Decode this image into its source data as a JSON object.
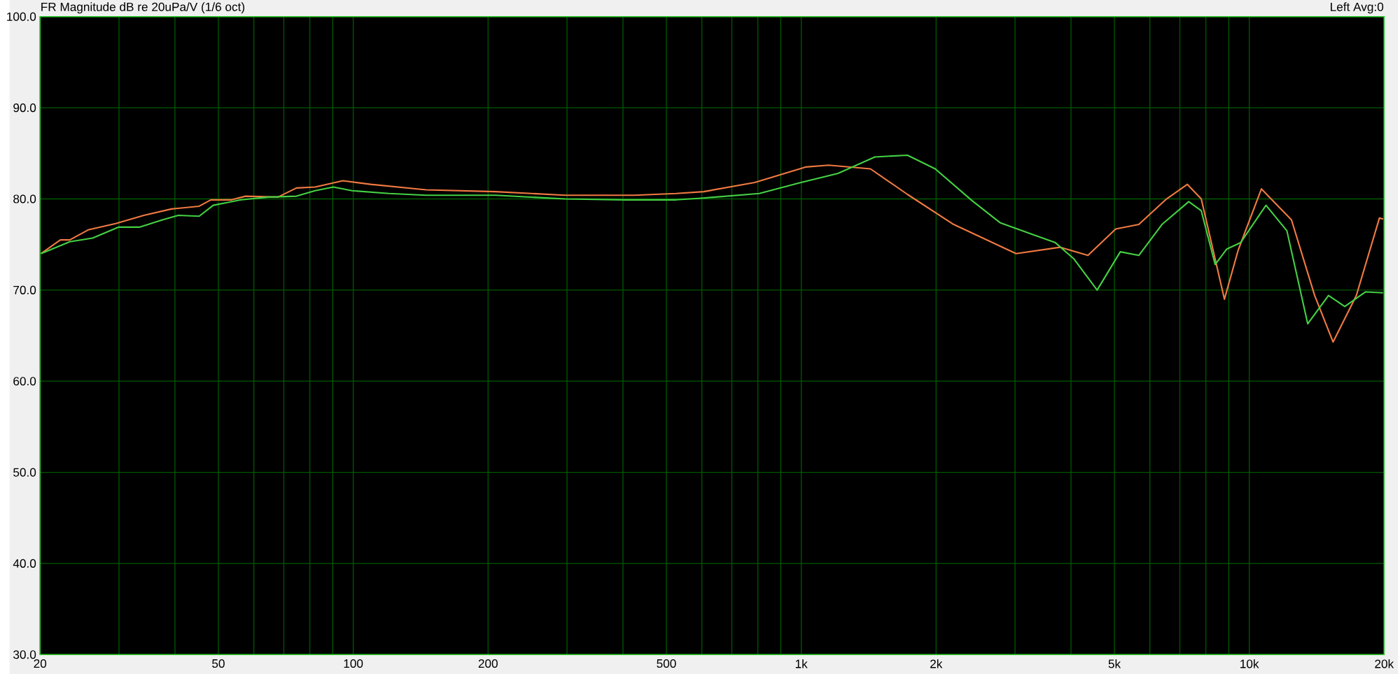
{
  "chart_data": {
    "type": "line",
    "title": "FR Magnitude dB re 20uPa/V (1/6 oct)",
    "annotations": [
      "Left Avg:0"
    ],
    "xlim": [
      20,
      20000
    ],
    "ylim": [
      30,
      100
    ],
    "log": "x",
    "grid": true,
    "marker": "none",
    "line_style": "solid",
    "xticks": [
      20,
      {
        "value": 30,
        "label": null
      },
      {
        "value": 40,
        "label": null
      },
      50,
      {
        "value": 60,
        "label": null
      },
      {
        "value": 70,
        "label": null
      },
      {
        "value": 80,
        "label": null
      },
      {
        "value": 90,
        "label": null
      },
      100,
      200,
      {
        "value": 300,
        "label": null
      },
      {
        "value": 400,
        "label": null
      },
      500,
      {
        "value": 600,
        "label": null
      },
      {
        "value": 700,
        "label": null
      },
      {
        "value": 800,
        "label": null
      },
      {
        "value": 900,
        "label": null
      },
      {
        "value": 1000,
        "label": "1k"
      },
      {
        "value": 2000,
        "label": "2k"
      },
      {
        "value": 3000,
        "label": null
      },
      {
        "value": 4000,
        "label": null
      },
      {
        "value": 5000,
        "label": "5k"
      },
      {
        "value": 6000,
        "label": null
      },
      {
        "value": 7000,
        "label": null
      },
      {
        "value": 8000,
        "label": null
      },
      {
        "value": 9000,
        "label": null
      },
      {
        "value": 10000,
        "label": "10k"
      },
      {
        "value": 20000,
        "label": "20k"
      }
    ],
    "yticks": [
      {
        "value": 30,
        "label": "30.0"
      },
      {
        "value": 40,
        "label": "40.0"
      },
      {
        "value": 50,
        "label": "50.0"
      },
      {
        "value": 60,
        "label": "60.0"
      },
      {
        "value": 70,
        "label": "70.0"
      },
      {
        "value": 80,
        "label": "80.0"
      },
      {
        "value": 90,
        "label": "90.0"
      },
      {
        "value": 100,
        "label": "100.0"
      }
    ],
    "series": [
      {
        "color": "#f07a42",
        "x": [
          20.1,
          22.2,
          23.3,
          25.6,
          29.5,
          34.1,
          39.3,
          45.3,
          48.1,
          53.5,
          57.5,
          67.9,
          74.7,
          82.2,
          94.8,
          109.3,
          145.4,
          207.8,
          296.9,
          424.1,
          525.6,
          605.9,
          787.4,
          1022,
          1151,
          1427,
          1726,
          2189,
          3017,
          3783,
          4364,
          5034,
          5668,
          6536,
          7275,
          7815,
          8802,
          9449,
          10645,
          12422,
          13994,
          15383,
          17335,
          19524,
          19894
        ],
        "values": [
          74.0,
          75.5,
          75.5,
          76.6,
          77.3,
          78.2,
          78.9,
          79.2,
          79.9,
          79.9,
          80.3,
          80.2,
          81.2,
          81.3,
          82.0,
          81.6,
          81.0,
          80.8,
          80.4,
          80.4,
          80.6,
          80.8,
          81.8,
          83.5,
          83.7,
          83.3,
          80.5,
          77.2,
          74.0,
          74.7,
          73.8,
          76.7,
          77.2,
          80.0,
          81.6,
          80.0,
          69.0,
          74.4,
          81.1,
          77.7,
          69.4,
          64.3,
          69.4,
          77.9,
          77.8
        ]
      },
      {
        "color": "#44d044",
        "x": [
          20.1,
          23.3,
          26.2,
          29.9,
          33.3,
          37.5,
          40.7,
          45.3,
          48.7,
          52.3,
          56.2,
          64.8,
          74.7,
          82.2,
          90.3,
          99.4,
          120.2,
          145.4,
          207.8,
          296.9,
          404.4,
          525.6,
          605.9,
          806,
          998.6,
          1208,
          1460,
          1726,
          1991,
          2407,
          2777,
          3281,
          3692,
          4064,
          4575,
          5154,
          5668,
          6384,
          7327,
          7815,
          8391,
          8908,
          9563,
          10898,
          12134,
          13504,
          15026,
          16339,
          18182,
          19894
        ],
        "values": [
          74.0,
          75.3,
          75.7,
          76.9,
          76.9,
          77.7,
          78.2,
          78.1,
          79.3,
          79.6,
          79.9,
          80.2,
          80.3,
          80.9,
          81.3,
          80.9,
          80.6,
          80.4,
          80.4,
          80.0,
          79.9,
          79.9,
          80.1,
          80.6,
          81.8,
          82.8,
          84.6,
          84.8,
          83.3,
          79.8,
          77.4,
          76.1,
          75.2,
          73.4,
          70.0,
          74.2,
          73.8,
          77.2,
          79.7,
          78.7,
          72.8,
          74.5,
          75.2,
          79.3,
          76.5,
          66.3,
          69.4,
          68.2,
          69.8,
          69.7
        ]
      }
    ]
  }
}
